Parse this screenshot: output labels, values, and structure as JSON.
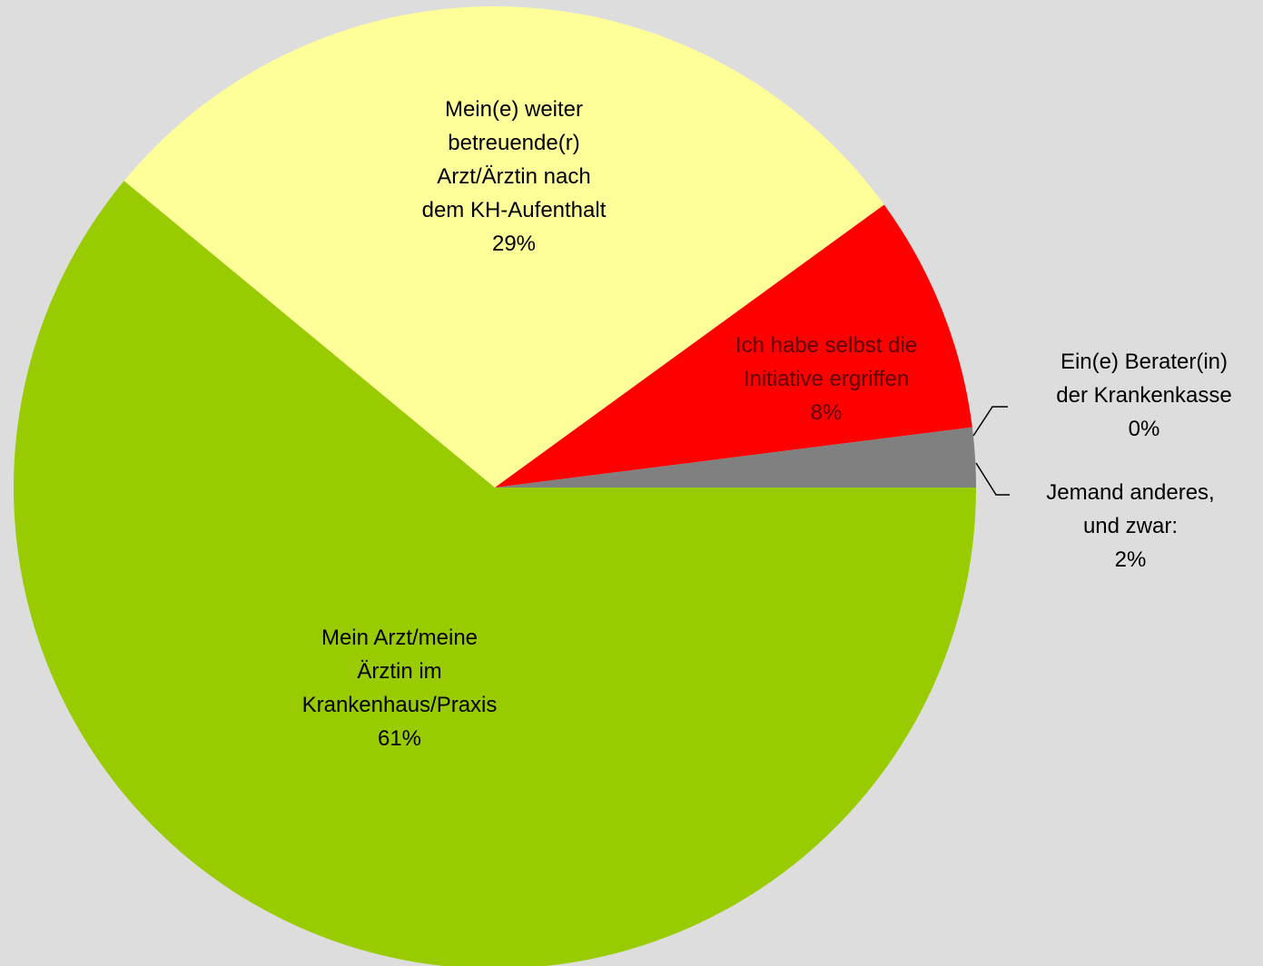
{
  "chart_data": {
    "type": "pie",
    "categories": [
      "Mein Arzt/meine\nÄrztin im\nKrankenhaus/Praxis",
      "Mein(e) weiter\nbetreuende(r)\nArzt/Ärztin nach\ndem KH-Aufenthalt",
      "Ich habe selbst die\nInitiative ergriffen",
      "Ein(e) Berater(in)\nder Krankenkasse",
      "Jemand anderes,\nund zwar:"
    ],
    "values": [
      61,
      29,
      8,
      0,
      2
    ],
    "value_labels": [
      "61%",
      "29%",
      "8%",
      "0%",
      "2%"
    ],
    "colors": [
      "#99cc00",
      "#ffff99",
      "#ff0000",
      "#808080",
      "#808080"
    ]
  }
}
